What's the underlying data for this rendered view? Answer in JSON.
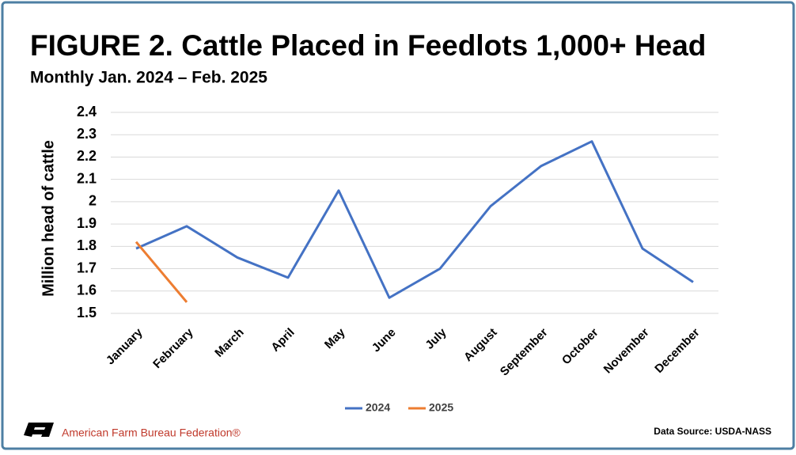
{
  "chart_data": {
    "type": "line",
    "title": "FIGURE 2. Cattle Placed in Feedlots 1,000+ Head",
    "subtitle": "Monthly Jan. 2024 – Feb. 2025",
    "y_label": "Million head of cattle",
    "categories": [
      "January",
      "February",
      "March",
      "April",
      "May",
      "June",
      "July",
      "August",
      "September",
      "October",
      "November",
      "December"
    ],
    "series": [
      {
        "name": "2024",
        "color": "#4472c4",
        "values": [
          1.79,
          1.89,
          1.75,
          1.66,
          2.05,
          1.57,
          1.7,
          1.98,
          2.16,
          2.27,
          1.79,
          1.64
        ]
      },
      {
        "name": "2025",
        "color": "#ed7d31",
        "values": [
          1.82,
          1.55,
          null,
          null,
          null,
          null,
          null,
          null,
          null,
          null,
          null,
          null
        ]
      }
    ],
    "ylim": [
      1.5,
      2.4
    ],
    "yticks": [
      1.5,
      1.6,
      1.7,
      1.8,
      1.9,
      2,
      2.1,
      2.2,
      2.3,
      2.4
    ],
    "grid": true,
    "legend": "bottom"
  },
  "footer": {
    "organization": "American Farm Bureau Federation®",
    "source": "Data Source:  USDA-NASS"
  }
}
